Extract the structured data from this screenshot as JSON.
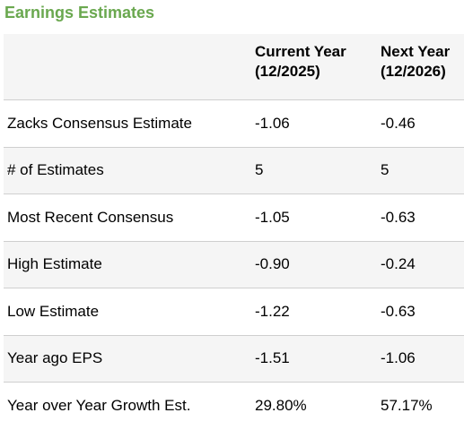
{
  "section_title": "Earnings Estimates",
  "table": {
    "headers": {
      "label": "",
      "current_line1": "Current Year",
      "current_line2": "(12/2025)",
      "next_line1": "Next Year",
      "next_line2": "(12/2026)"
    },
    "rows": [
      {
        "label": "Zacks Consensus Estimate",
        "current": "-1.06",
        "next": "-0.46"
      },
      {
        "label": "# of Estimates",
        "current": "5",
        "next": "5"
      },
      {
        "label": "Most Recent Consensus",
        "current": "-1.05",
        "next": "-0.63"
      },
      {
        "label": "High Estimate",
        "current": "-0.90",
        "next": "-0.24"
      },
      {
        "label": "Low Estimate",
        "current": "-1.22",
        "next": "-0.63"
      },
      {
        "label": "Year ago EPS",
        "current": "-1.51",
        "next": "-1.06"
      },
      {
        "label": "Year over Year Growth Est.",
        "current": "29.80%",
        "next": "57.17%"
      }
    ]
  },
  "colors": {
    "title": "#6aa84f",
    "stripe": "#f5f5f5",
    "divider": "#cfcfcf"
  }
}
